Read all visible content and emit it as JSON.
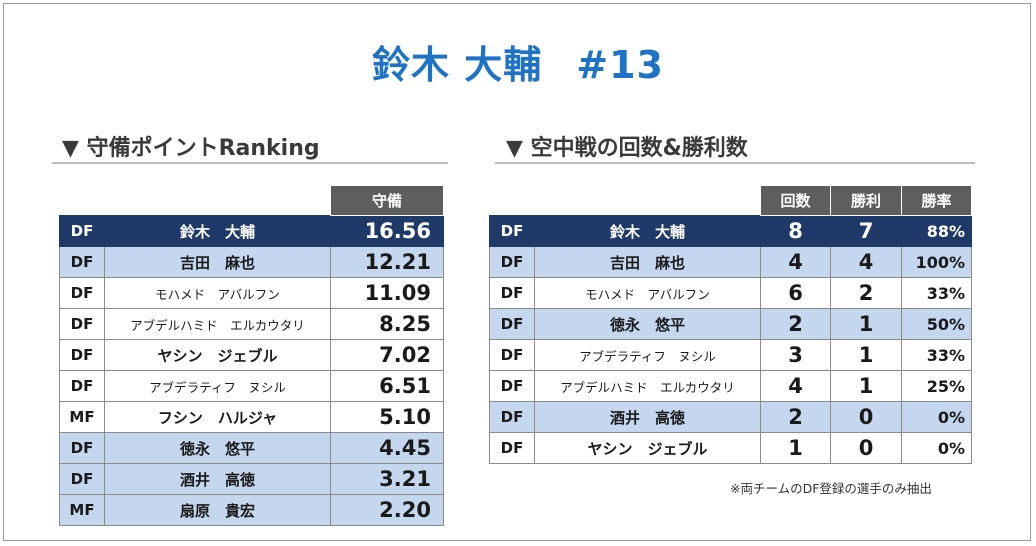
{
  "title": {
    "name": "鈴木 大輔",
    "number": "#13"
  },
  "ranking": {
    "heading": "▼ 守備ポイントRanking",
    "column": "守備",
    "rows": [
      {
        "pos": "DF",
        "name": "鈴木　大輔",
        "value": "16.56"
      },
      {
        "pos": "DF",
        "name": "吉田　麻也",
        "value": "12.21"
      },
      {
        "pos": "DF",
        "name": "モハメド　アバルフン",
        "value": "11.09"
      },
      {
        "pos": "DF",
        "name": "アブデルハミド　エルカウタリ",
        "value": "8.25"
      },
      {
        "pos": "DF",
        "name": "ヤシン　ジェブル",
        "value": "7.02"
      },
      {
        "pos": "DF",
        "name": "アブデラティフ　ヌシル",
        "value": "6.51"
      },
      {
        "pos": "MF",
        "name": "フシン　ハルジャ",
        "value": "5.10"
      },
      {
        "pos": "DF",
        "name": "徳永　悠平",
        "value": "4.45"
      },
      {
        "pos": "DF",
        "name": "酒井　高徳",
        "value": "3.21"
      },
      {
        "pos": "MF",
        "name": "扇原　貴宏",
        "value": "2.20"
      }
    ]
  },
  "aerial": {
    "heading": "▼ 空中戦の回数&勝利数",
    "columns": [
      "回数",
      "勝利",
      "勝率"
    ],
    "rows": [
      {
        "pos": "DF",
        "name": "鈴木　大輔",
        "count": "8",
        "wins": "7",
        "rate": "88%"
      },
      {
        "pos": "DF",
        "name": "吉田　麻也",
        "count": "4",
        "wins": "4",
        "rate": "100%"
      },
      {
        "pos": "DF",
        "name": "モハメド　アバルフン",
        "count": "6",
        "wins": "2",
        "rate": "33%"
      },
      {
        "pos": "DF",
        "name": "徳永　悠平",
        "count": "2",
        "wins": "1",
        "rate": "50%"
      },
      {
        "pos": "DF",
        "name": "アブデラティフ　ヌシル",
        "count": "3",
        "wins": "1",
        "rate": "33%"
      },
      {
        "pos": "DF",
        "name": "アブデルハミド　エルカウタリ",
        "count": "4",
        "wins": "1",
        "rate": "25%"
      },
      {
        "pos": "DF",
        "name": "酒井　高徳",
        "count": "2",
        "wins": "0",
        "rate": "0%"
      },
      {
        "pos": "DF",
        "name": "ヤシン　ジェブル",
        "count": "1",
        "wins": "0",
        "rate": "0%"
      }
    ],
    "note": "※両チームのDF登録の選手のみ抽出"
  },
  "colors": {
    "title": "#1f73c6",
    "highlight_row": "#1f3a68",
    "alt_row": "#c5d7ef",
    "header": "#5e5e5e"
  }
}
